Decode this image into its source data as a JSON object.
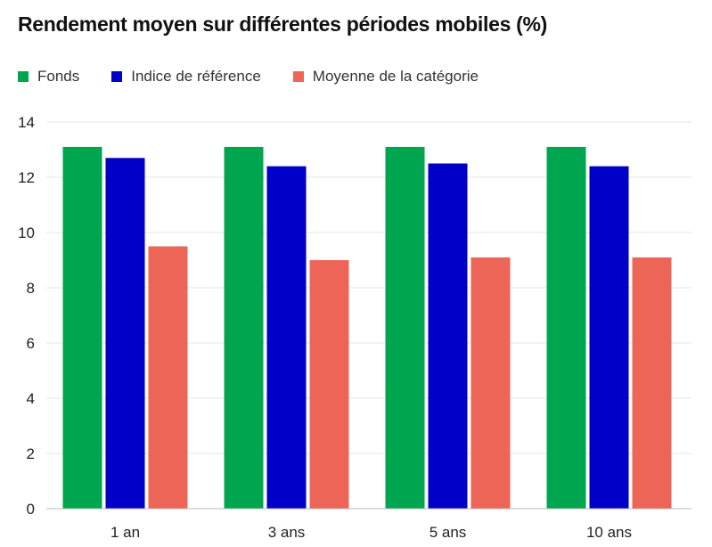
{
  "chart_data": {
    "type": "bar",
    "title": "Rendement moyen sur différentes périodes mobiles (%)",
    "categories": [
      "1 an",
      "3 ans",
      "5 ans",
      "10 ans"
    ],
    "series": [
      {
        "name": "Fonds",
        "color": "#00a550",
        "values": [
          13.1,
          13.1,
          13.1,
          13.1
        ]
      },
      {
        "name": "Indice de référence",
        "color": "#0000c8",
        "values": [
          12.7,
          12.4,
          12.5,
          12.4
        ]
      },
      {
        "name": "Moyenne de la catégorie",
        "color": "#ec6557",
        "values": [
          9.5,
          9.0,
          9.1,
          9.1
        ]
      }
    ],
    "yticks": [
      "0",
      "2",
      "4",
      "6",
      "8",
      "10",
      "12",
      "14"
    ],
    "ylim": [
      0,
      14
    ],
    "xlabel": "",
    "ylabel": "",
    "grid": true,
    "legend_position": "top-left"
  }
}
